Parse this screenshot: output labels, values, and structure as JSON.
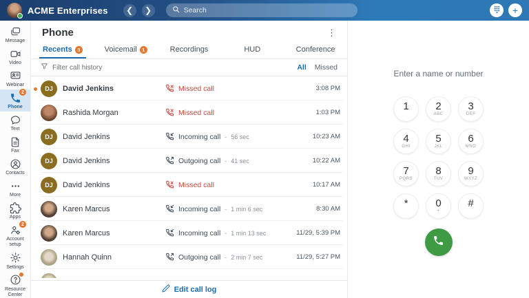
{
  "topbar": {
    "company": "ACME Enterprises",
    "search_placeholder": "Search",
    "back_icon": "chevron-left",
    "forward_icon": "chevron-right"
  },
  "sidebar": {
    "items": [
      {
        "id": "message",
        "label": "Message",
        "icon": "chat"
      },
      {
        "id": "video",
        "label": "Video",
        "icon": "video"
      },
      {
        "id": "webinar",
        "label": "Webinar",
        "icon": "webinar"
      },
      {
        "id": "phone",
        "label": "Phone",
        "icon": "phone",
        "active": true,
        "badge": "2"
      },
      {
        "id": "text",
        "label": "Text",
        "icon": "text"
      },
      {
        "id": "fax",
        "label": "Fax",
        "icon": "fax"
      },
      {
        "id": "contacts",
        "label": "Contacts",
        "icon": "contacts"
      },
      {
        "id": "more",
        "label": "More",
        "icon": "more"
      }
    ],
    "bottom_items": [
      {
        "id": "apps",
        "label": "Apps",
        "icon": "apps"
      },
      {
        "id": "account-setup",
        "label": "Account setup",
        "icon": "account",
        "badge": "2"
      },
      {
        "id": "settings",
        "label": "Settings",
        "icon": "settings"
      },
      {
        "id": "resource-center",
        "label": "Resource Center",
        "icon": "help",
        "dot": true
      }
    ]
  },
  "phone_page": {
    "title": "Phone",
    "tabs": [
      {
        "label": "Recents",
        "badge": "3",
        "active": true
      },
      {
        "label": "Voicemail",
        "badge": "1"
      },
      {
        "label": "Recordings"
      },
      {
        "label": "HUD"
      },
      {
        "label": "Conference"
      }
    ],
    "filter": {
      "label": "Filter call history",
      "all": "All",
      "missed": "Missed"
    },
    "calls": [
      {
        "name": "David Jenkins",
        "initials": "DJ",
        "avatar_style": "initials-gold",
        "type": "missed",
        "type_label": "Missed call",
        "duration": "",
        "time": "3:08 PM",
        "unread": true
      },
      {
        "name": "Rashida Morgan",
        "initials": "",
        "avatar_style": "photo-a",
        "type": "missed",
        "type_label": "Missed call",
        "duration": "",
        "time": "1:03 PM"
      },
      {
        "name": "David Jenkins",
        "initials": "DJ",
        "avatar_style": "initials-gold",
        "type": "incoming",
        "type_label": "Incoming call",
        "duration": "56 sec",
        "time": "10:23 AM"
      },
      {
        "name": "David Jenkins",
        "initials": "DJ",
        "avatar_style": "initials-gold",
        "type": "outgoing",
        "type_label": "Outgoing call",
        "duration": "41 sec",
        "time": "10:22 AM"
      },
      {
        "name": "David Jenkins",
        "initials": "DJ",
        "avatar_style": "initials-gold",
        "type": "missed",
        "type_label": "Missed call",
        "duration": "",
        "time": "10:17 AM"
      },
      {
        "name": "Karen Marcus",
        "initials": "",
        "avatar_style": "photo-b",
        "type": "incoming",
        "type_label": "Incoming call",
        "duration": "1 min 6 sec",
        "time": "8:30 AM"
      },
      {
        "name": "Karen Marcus",
        "initials": "",
        "avatar_style": "photo-b",
        "type": "incoming",
        "type_label": "Incoming call",
        "duration": "1 min 13 sec",
        "time": "11/29, 5:39 PM"
      },
      {
        "name": "Hannah Quinn",
        "initials": "",
        "avatar_style": "photo-c",
        "type": "outgoing",
        "type_label": "Outgoing call",
        "duration": "2 min 7 sec",
        "time": "11/29, 5:27 PM"
      }
    ],
    "edit_call_log_label": "Edit call log"
  },
  "dialpad": {
    "prompt": "Enter a name or number",
    "keys": [
      {
        "digit": "1",
        "letters": ""
      },
      {
        "digit": "2",
        "letters": "ABC"
      },
      {
        "digit": "3",
        "letters": "DEF"
      },
      {
        "digit": "4",
        "letters": "GHI"
      },
      {
        "digit": "5",
        "letters": "JKL"
      },
      {
        "digit": "6",
        "letters": "MNO"
      },
      {
        "digit": "7",
        "letters": "PQRS"
      },
      {
        "digit": "8",
        "letters": "TUV"
      },
      {
        "digit": "9",
        "letters": "WXYZ"
      },
      {
        "digit": "*",
        "letters": ""
      },
      {
        "digit": "0",
        "letters": "+"
      },
      {
        "digit": "#",
        "letters": ""
      }
    ]
  },
  "colors": {
    "accent_blue": "#1a6cb0",
    "topbar_left": "#1b3e6d",
    "topbar_right": "#2e78b6",
    "badge_orange": "#e8762c",
    "missed_red": "#c8473c",
    "call_green": "#3e9b44",
    "active_item_bg": "#d6e5f4"
  }
}
